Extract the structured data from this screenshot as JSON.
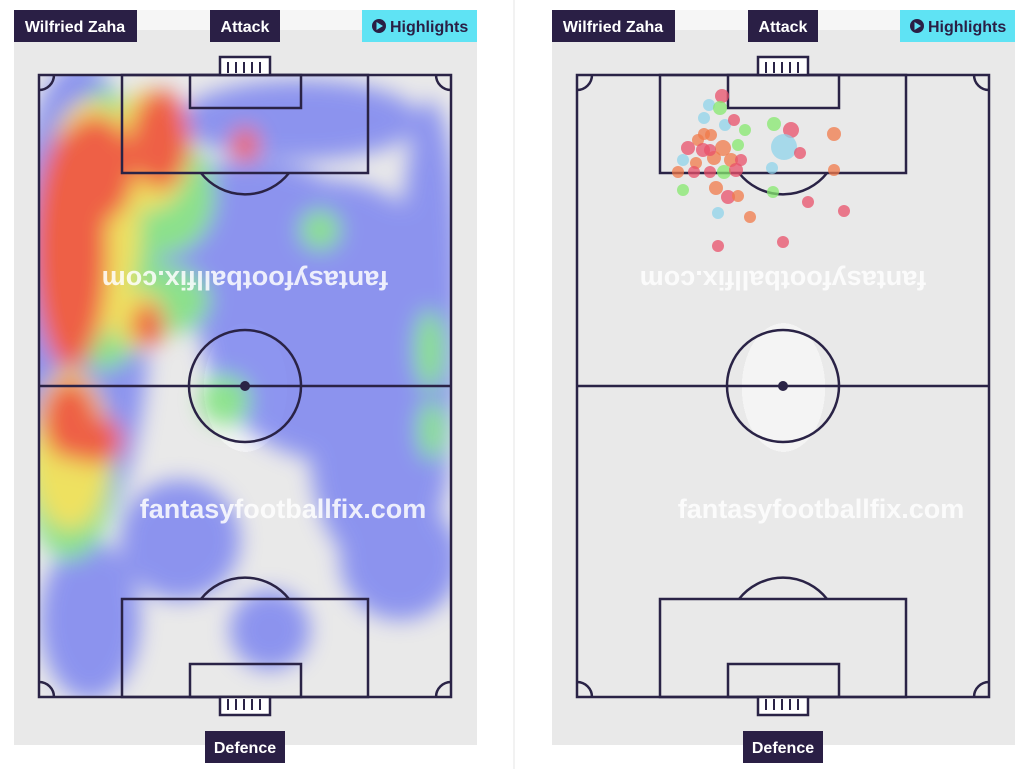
{
  "panels": [
    {
      "player": "Wilfried Zaha",
      "top_label": "Attack",
      "button": "Highlights",
      "bottom_label": "Defence",
      "watermark_top": "fantasyfootballfix.com",
      "watermark_bottom": "fantasyfootballfix.com"
    },
    {
      "player": "Wilfried Zaha",
      "top_label": "Attack",
      "button": "Highlights",
      "bottom_label": "Defence",
      "watermark_top": "fantasyfootballfix.com",
      "watermark_bottom": "fantasyfootballfix.com"
    }
  ]
}
